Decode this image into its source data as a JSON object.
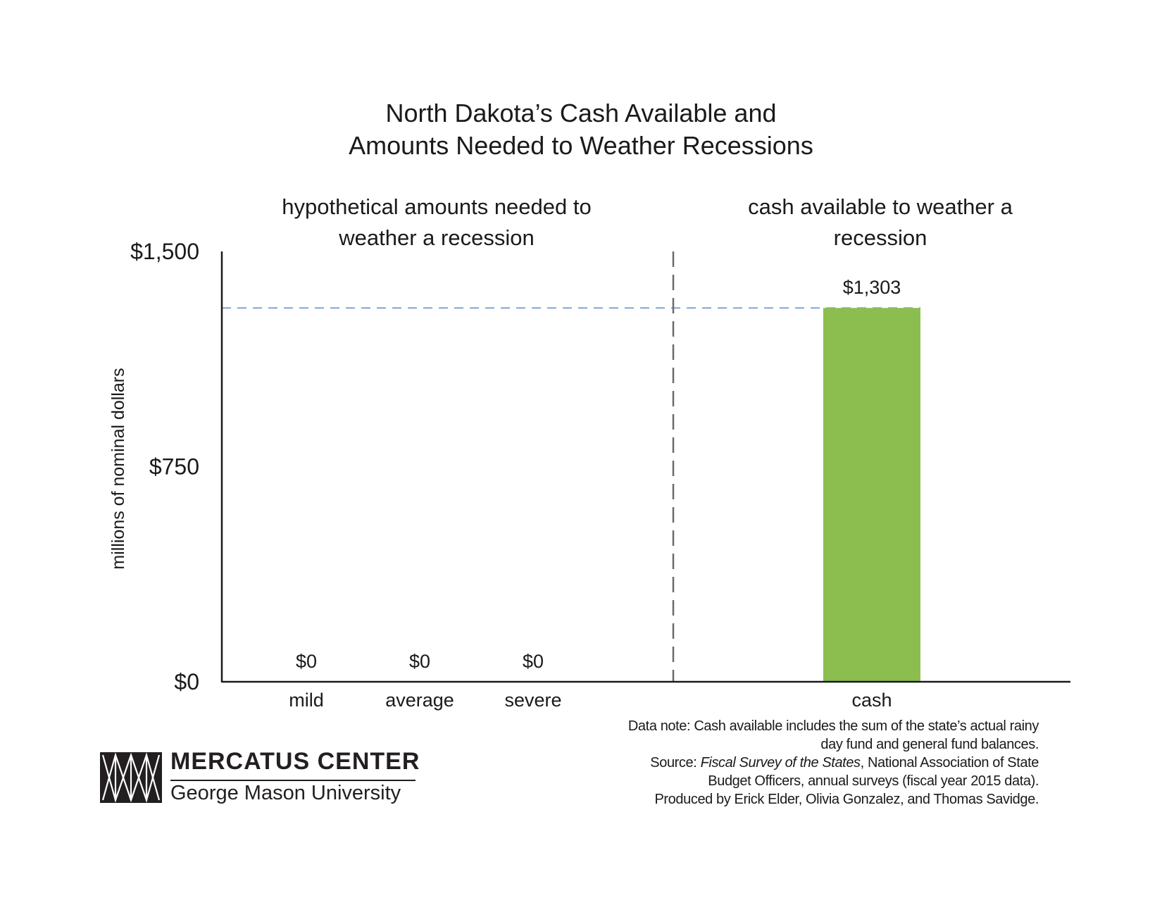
{
  "title_lines": [
    "North Dakota’s Cash Available and",
    "Amounts Needed to Weather Recessions"
  ],
  "sections": {
    "left_lines": [
      "hypothetical amounts needed to",
      "weather a recession"
    ],
    "right_lines": [
      "cash available to weather a",
      "recession"
    ]
  },
  "chart_data": {
    "type": "bar",
    "title": "North Dakota’s Cash Available and Amounts Needed to Weather Recessions",
    "ylabel": "millions of nominal dollars",
    "ylim": [
      0,
      1500
    ],
    "yticks": [
      {
        "value": 0,
        "label": "$0"
      },
      {
        "value": 750,
        "label": "$750"
      },
      {
        "value": 1500,
        "label": "$1,500"
      }
    ],
    "categories": [
      "mild",
      "average",
      "severe",
      "cash"
    ],
    "values": [
      0,
      0,
      0,
      1303
    ],
    "value_labels": [
      "$0",
      "$0",
      "$0",
      "$1,303"
    ],
    "groups": [
      {
        "label": "hypothetical amounts needed to weather a recession",
        "categories": [
          "mild",
          "average",
          "severe"
        ]
      },
      {
        "label": "cash available to weather a recession",
        "categories": [
          "cash"
        ]
      }
    ],
    "reference_line": {
      "value": 1303,
      "style": "dashed",
      "color": "#7fa6d9"
    },
    "colors": {
      "cash_bar": "#8cbd4f",
      "divider": "#6b6b6b",
      "axis": "#1a1a1a"
    }
  },
  "notes": [
    "Data note: Cash available includes the sum of the state’s actual rainy",
    "day fund and general fund balances."
  ],
  "source": {
    "prefix": "Source: ",
    "publication": "Fiscal Survey of the States",
    "rest": ", National Association of State",
    "line2": "Budget Officers, annual surveys (fiscal year 2015 data)."
  },
  "credit": "Produced by Erick Elder, Olivia Gonzalez, and Thomas Savidge.",
  "logo": {
    "name": "MERCATUS CENTER",
    "subtitle": "George Mason University"
  }
}
